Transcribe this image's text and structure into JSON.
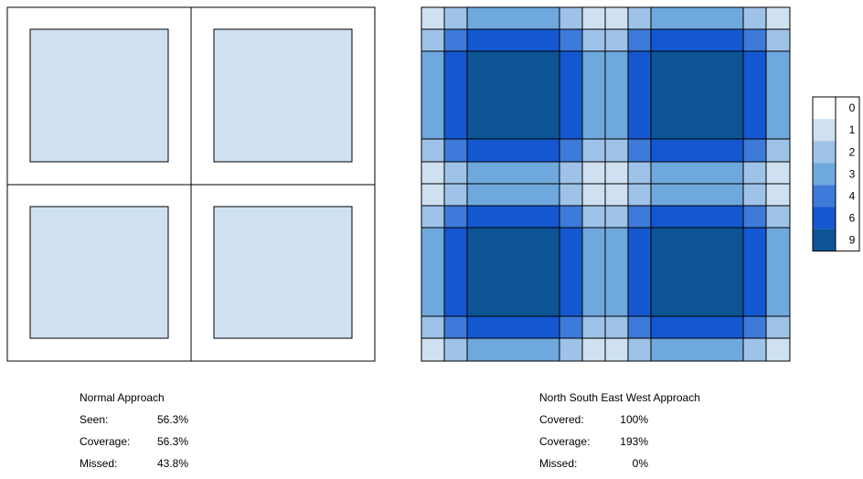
{
  "colors": {
    "0": "#ffffff",
    "1": "#cfe1f1",
    "2": "#9ec2e8",
    "3": "#6ea8dd",
    "4": "#3d7ad9",
    "6": "#1457d0",
    "9": "#0d5495",
    "border": "#000000"
  },
  "legend": {
    "levels": [
      "0",
      "1",
      "2",
      "3",
      "4",
      "6",
      "9"
    ]
  },
  "left_panel": {
    "title": "Normal Approach",
    "rows": [
      {
        "label": "Seen:",
        "value": "56.3%"
      },
      {
        "label": "Coverage:",
        "value": "56.3%"
      },
      {
        "label": "Missed:",
        "value": "43.8%"
      }
    ]
  },
  "right_panel": {
    "title": "North South East West Approach",
    "rows": [
      {
        "label": "Covered:",
        "value": "100%"
      },
      {
        "label": "Coverage:",
        "value": "193%"
      },
      {
        "label": "Missed:",
        "value": "0%"
      }
    ]
  },
  "right_grid": {
    "row_levels": [
      1,
      4,
      9,
      4,
      1,
      1,
      4,
      9,
      4,
      1
    ],
    "col_levels": [
      1,
      4,
      9,
      4,
      1,
      1,
      4,
      9,
      4,
      1
    ]
  }
}
